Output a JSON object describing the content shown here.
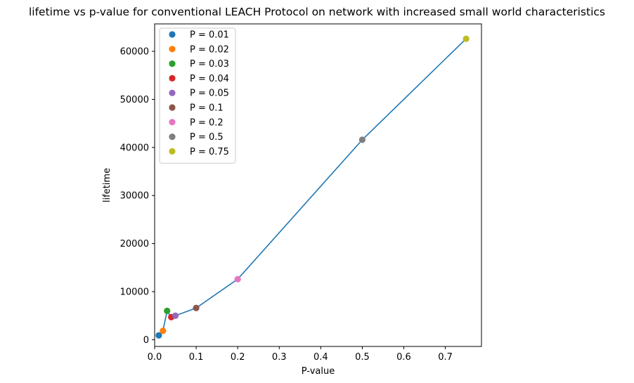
{
  "chart_data": {
    "type": "scatter",
    "title": "lifetime vs p-value for conventional LEACH Protocol on network with increased small world characteristics",
    "xlabel": "P-value",
    "ylabel": "lifetime",
    "xlim": [
      0,
      0.787
    ],
    "ylim": [
      -1400,
      65700
    ],
    "xticks": [
      {
        "value": 0.0,
        "label": "0.0"
      },
      {
        "value": 0.1,
        "label": "0.1"
      },
      {
        "value": 0.2,
        "label": "0.2"
      },
      {
        "value": 0.3,
        "label": "0.3"
      },
      {
        "value": 0.4,
        "label": "0.4"
      },
      {
        "value": 0.5,
        "label": "0.5"
      },
      {
        "value": 0.6,
        "label": "0.6"
      },
      {
        "value": 0.7,
        "label": "0.7"
      }
    ],
    "yticks": [
      {
        "value": 0,
        "label": "0"
      },
      {
        "value": 10000,
        "label": "10000"
      },
      {
        "value": 20000,
        "label": "20000"
      },
      {
        "value": 30000,
        "label": "30000"
      },
      {
        "value": 40000,
        "label": "40000"
      },
      {
        "value": 50000,
        "label": "50000"
      },
      {
        "value": 60000,
        "label": "60000"
      }
    ],
    "grid": false,
    "legend": "upper-left",
    "line_color": "#1f77b4",
    "line_points": [
      [
        0.01,
        900
      ],
      [
        0.02,
        1850
      ],
      [
        0.03,
        6000
      ],
      [
        0.04,
        4700
      ],
      [
        0.05,
        5000
      ],
      [
        0.1,
        6600
      ],
      [
        0.2,
        12600
      ],
      [
        0.5,
        41600
      ],
      [
        0.75,
        62600
      ]
    ],
    "series": [
      {
        "name": "P = 0.01",
        "x": 0.01,
        "y": 900,
        "color": "#1f77b4"
      },
      {
        "name": "P = 0.02",
        "x": 0.02,
        "y": 1850,
        "color": "#ff7f0e"
      },
      {
        "name": "P = 0.03",
        "x": 0.03,
        "y": 6000,
        "color": "#2ca02c"
      },
      {
        "name": "P = 0.04",
        "x": 0.04,
        "y": 4700,
        "color": "#d62728"
      },
      {
        "name": "P = 0.05",
        "x": 0.05,
        "y": 5000,
        "color": "#9467bd"
      },
      {
        "name": "P = 0.1",
        "x": 0.1,
        "y": 6600,
        "color": "#8c564b"
      },
      {
        "name": "P = 0.2",
        "x": 0.2,
        "y": 12600,
        "color": "#e377c2"
      },
      {
        "name": "P = 0.5",
        "x": 0.5,
        "y": 41600,
        "color": "#7f7f7f"
      },
      {
        "name": "P = 0.75",
        "x": 0.75,
        "y": 62600,
        "color": "#bcbd22"
      }
    ]
  }
}
